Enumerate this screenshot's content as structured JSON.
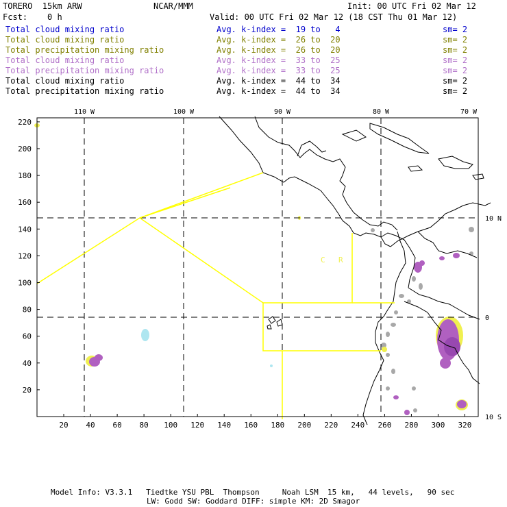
{
  "header": {
    "model": "TORERO  15km ARW",
    "org": "NCAR/MMM",
    "init": "Init: 00 UTC Fri 02 Mar 12",
    "fcst": "Fcst:    0 h",
    "valid": "Valid: 00 UTC Fri 02 Mar 12 (18 CST Thu 01 Mar 12)"
  },
  "fields": [
    {
      "name": "Total cloud mixing ratio",
      "kindex": "Avg. k-index =  19 to   4",
      "sm": "sm= 2",
      "color": "#0000cc"
    },
    {
      "name": "Total cloud mixing ratio",
      "kindex": "Avg. k-index =  26 to  20",
      "sm": "sm= 2",
      "color": "#808000"
    },
    {
      "name": "Total precipitation mixing ratio",
      "kindex": "Avg. k-index =  26 to  20",
      "sm": "sm= 2",
      "color": "#808000"
    },
    {
      "name": "Total cloud mixing ratio",
      "kindex": "Avg. k-index =  33 to  25",
      "sm": "sm= 2",
      "color": "#b070c8"
    },
    {
      "name": "Total precipitation mixing ratio",
      "kindex": "Avg. k-index =  33 to  25",
      "sm": "sm= 2",
      "color": "#b070c8"
    },
    {
      "name": "Total cloud mixing ratio",
      "kindex": "Avg. k-index =  44 to  34",
      "sm": "sm= 2",
      "color": "#000000"
    },
    {
      "name": "Total precipitation mixing ratio",
      "kindex": "Avg. k-index =  44 to  34",
      "sm": "sm= 2",
      "color": "#000000"
    }
  ],
  "axes": {
    "x_ticks": [
      "20",
      "40",
      "60",
      "80",
      "100",
      "120",
      "140",
      "160",
      "180",
      "200",
      "220",
      "240",
      "260",
      "280",
      "300",
      "320"
    ],
    "y_ticks": [
      "20",
      "40",
      "60",
      "80",
      "100",
      "120",
      "140",
      "160",
      "180",
      "200",
      "220"
    ],
    "lon_labels": [
      "110 W",
      "100 W",
      "90 W",
      "80 W",
      "70 W"
    ],
    "lat_labels": [
      "10 N",
      "0",
      "10 S"
    ]
  },
  "map_labels": {
    "cr1": "C",
    "cr2": "R"
  },
  "footer": {
    "line1": "Model Info: V3.3.1   Tiedtke YSU PBL  Thompson     Noah LSM  15 km,   44 levels,   90 sec",
    "line2": "LW: Godd SW: Goddard DIFF: simple KM: 2D Smagor"
  },
  "colors": {
    "boundary": "#ffff00",
    "cloud_light": "#aee6f0",
    "cloud_mid": "#f0f050",
    "cloud_heavy": "#b060c0",
    "cloud_top": "#a8a8a8"
  }
}
